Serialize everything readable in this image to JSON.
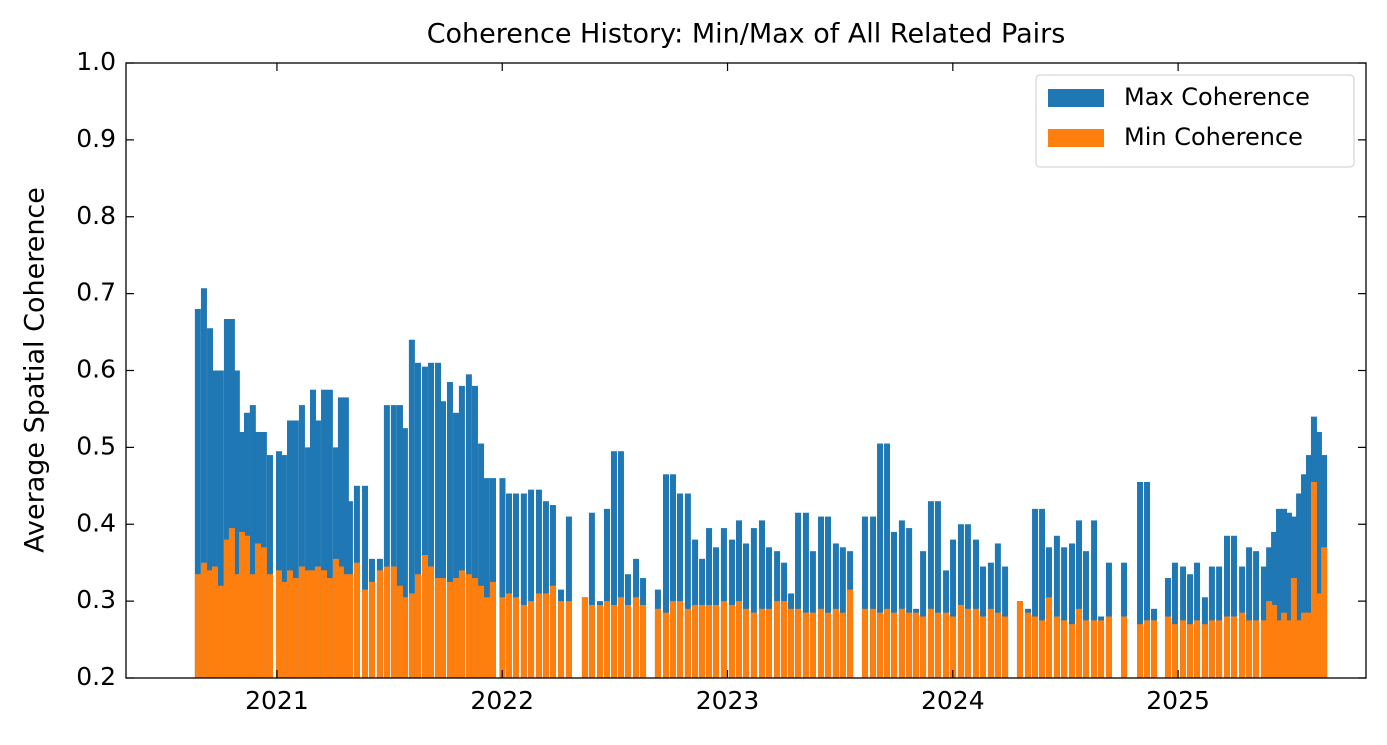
{
  "chart_data": {
    "type": "bar",
    "title": "Coherence History: Min/Max of All Related Pairs",
    "y_label": "Average Spatial Coherence",
    "xlim": [
      2020.33,
      2025.834
    ],
    "xticks": [
      2021,
      2022,
      2023,
      2024,
      2025
    ],
    "ylim": [
      0.2,
      1
    ],
    "yticks": [
      0.2,
      0.3,
      0.4,
      0.5,
      0.6,
      0.7,
      0.8,
      0.9,
      {
        "value": 1,
        "label": "1.0"
      }
    ],
    "legend": "upper right",
    "x": [
      2020.649,
      2020.676,
      2020.703,
      2020.725,
      2020.751,
      2020.778,
      2020.8,
      2020.822,
      2020.845,
      2020.867,
      2020.893,
      2020.916,
      2020.942,
      2020.969,
      2021.009,
      2021.031,
      2021.058,
      2021.084,
      2021.111,
      2021.138,
      2021.16,
      2021.182,
      2021.209,
      2021.235,
      2021.262,
      2021.284,
      2021.306,
      2021.324,
      2021.355,
      2021.391,
      2021.422,
      2021.457,
      2021.488,
      2021.519,
      2021.546,
      2021.568,
      2021.599,
      2021.626,
      2021.657,
      2021.684,
      2021.715,
      2021.737,
      2021.768,
      2021.795,
      2021.821,
      2021.852,
      2021.879,
      2021.906,
      2021.932,
      2021.959,
      2022.001,
      2022.03,
      2022.061,
      2022.096,
      2022.128,
      2022.163,
      2022.194,
      2022.225,
      2022.261,
      2022.296,
      2022.367,
      2022.398,
      2022.434,
      2022.465,
      2022.496,
      2022.527,
      2022.558,
      2022.594,
      2022.625,
      2022.691,
      2022.727,
      2022.758,
      2022.789,
      2022.824,
      2022.856,
      2022.887,
      2022.918,
      2022.949,
      2022.984,
      2023.02,
      2023.051,
      2023.082,
      2023.117,
      2023.153,
      2023.184,
      2023.22,
      2023.251,
      2023.282,
      2023.313,
      2023.348,
      2023.379,
      2023.415,
      2023.446,
      2023.481,
      2023.512,
      2023.544,
      2023.61,
      2023.646,
      2023.677,
      2023.708,
      2023.739,
      2023.774,
      2023.806,
      2023.837,
      2023.868,
      2023.903,
      2023.934,
      2023.97,
      2024.001,
      2024.036,
      2024.067,
      2024.103,
      2024.134,
      2024.169,
      2024.2,
      2024.232,
      2024.298,
      2024.334,
      2024.365,
      2024.396,
      2024.427,
      2024.462,
      2024.494,
      2024.529,
      2024.56,
      2024.591,
      2024.627,
      2024.658,
      2024.693,
      2024.76,
      2024.831,
      2024.862,
      2024.893,
      2024.955,
      2024.986,
      2025.022,
      2025.053,
      2025.084,
      2025.119,
      2025.15,
      2025.182,
      2025.217,
      2025.248,
      2025.284,
      2025.315,
      2025.346,
      2025.381,
      2025.404,
      2025.426,
      2025.448,
      2025.47,
      2025.492,
      2025.514,
      2025.537,
      2025.559,
      2025.581,
      2025.603,
      2025.625,
      2025.648
    ],
    "series": [
      {
        "name": "Max Coherence",
        "color": "#1f77b4",
        "values": [
          0.68,
          0.707,
          0.655,
          0.6,
          0.6,
          0.667,
          0.667,
          0.6,
          0.52,
          0.545,
          0.555,
          0.52,
          0.52,
          0.49,
          0.495,
          0.49,
          0.535,
          0.535,
          0.555,
          0.5,
          0.575,
          0.535,
          0.575,
          0.575,
          0.5,
          0.565,
          0.565,
          0.43,
          0.45,
          0.45,
          0.355,
          0.355,
          0.555,
          0.555,
          0.555,
          0.525,
          0.64,
          0.61,
          0.605,
          0.61,
          0.61,
          0.56,
          0.585,
          0.545,
          0.58,
          0.595,
          0.58,
          0.505,
          0.46,
          0.46,
          0.46,
          0.44,
          0.44,
          0.44,
          0.445,
          0.445,
          0.43,
          0.425,
          0.315,
          0.41,
          0.305,
          0.415,
          0.3,
          0.42,
          0.495,
          0.495,
          0.335,
          0.355,
          0.33,
          0.315,
          0.465,
          0.465,
          0.44,
          0.44,
          0.38,
          0.355,
          0.395,
          0.37,
          0.395,
          0.38,
          0.405,
          0.375,
          0.395,
          0.405,
          0.37,
          0.365,
          0.35,
          0.31,
          0.415,
          0.415,
          0.365,
          0.41,
          0.41,
          0.375,
          0.37,
          0.365,
          0.41,
          0.41,
          0.505,
          0.505,
          0.39,
          0.405,
          0.395,
          0.29,
          0.365,
          0.43,
          0.43,
          0.34,
          0.38,
          0.4,
          0.4,
          0.38,
          0.345,
          0.35,
          0.375,
          0.345,
          0.3,
          0.29,
          0.42,
          0.42,
          0.37,
          0.385,
          0.37,
          0.375,
          0.405,
          0.365,
          0.405,
          0.28,
          0.35,
          0.35,
          0.455,
          0.455,
          0.29,
          0.33,
          0.35,
          0.345,
          0.335,
          0.35,
          0.305,
          0.345,
          0.345,
          0.385,
          0.385,
          0.345,
          0.37,
          0.365,
          0.345,
          0.37,
          0.39,
          0.42,
          0.42,
          0.415,
          0.41,
          0.44,
          0.465,
          0.49,
          0.54,
          0.52,
          0.49
        ]
      },
      {
        "name": "Min Coherence",
        "color": "#ff7f0e",
        "values": [
          0.335,
          0.35,
          0.34,
          0.345,
          0.32,
          0.38,
          0.395,
          0.335,
          0.39,
          0.385,
          0.335,
          0.375,
          0.37,
          0.335,
          0.34,
          0.325,
          0.34,
          0.33,
          0.345,
          0.34,
          0.34,
          0.345,
          0.34,
          0.33,
          0.355,
          0.345,
          0.335,
          0.335,
          0.35,
          0.315,
          0.325,
          0.34,
          0.345,
          0.345,
          0.32,
          0.305,
          0.31,
          0.335,
          0.36,
          0.345,
          0.33,
          0.33,
          0.325,
          0.33,
          0.34,
          0.335,
          0.33,
          0.32,
          0.305,
          0.325,
          0.305,
          0.31,
          0.305,
          0.295,
          0.3,
          0.31,
          0.31,
          0.32,
          0.3,
          0.3,
          0.305,
          0.295,
          0.295,
          0.3,
          0.295,
          0.305,
          0.295,
          0.305,
          0.295,
          0.29,
          0.285,
          0.3,
          0.3,
          0.29,
          0.295,
          0.295,
          0.295,
          0.295,
          0.3,
          0.295,
          0.3,
          0.29,
          0.285,
          0.29,
          0.29,
          0.3,
          0.3,
          0.29,
          0.29,
          0.285,
          0.285,
          0.29,
          0.285,
          0.29,
          0.285,
          0.315,
          0.29,
          0.29,
          0.285,
          0.29,
          0.285,
          0.29,
          0.285,
          0.285,
          0.28,
          0.29,
          0.285,
          0.285,
          0.28,
          0.295,
          0.29,
          0.29,
          0.28,
          0.29,
          0.285,
          0.28,
          0.3,
          0.285,
          0.28,
          0.275,
          0.305,
          0.28,
          0.275,
          0.27,
          0.29,
          0.275,
          0.275,
          0.275,
          0.28,
          0.28,
          0.27,
          0.275,
          0.275,
          0.28,
          0.27,
          0.275,
          0.27,
          0.275,
          0.27,
          0.275,
          0.275,
          0.28,
          0.28,
          0.285,
          0.275,
          0.275,
          0.275,
          0.3,
          0.295,
          0.275,
          0.285,
          0.275,
          0.33,
          0.275,
          0.285,
          0.285,
          0.455,
          0.31,
          0.37
        ]
      }
    ]
  }
}
